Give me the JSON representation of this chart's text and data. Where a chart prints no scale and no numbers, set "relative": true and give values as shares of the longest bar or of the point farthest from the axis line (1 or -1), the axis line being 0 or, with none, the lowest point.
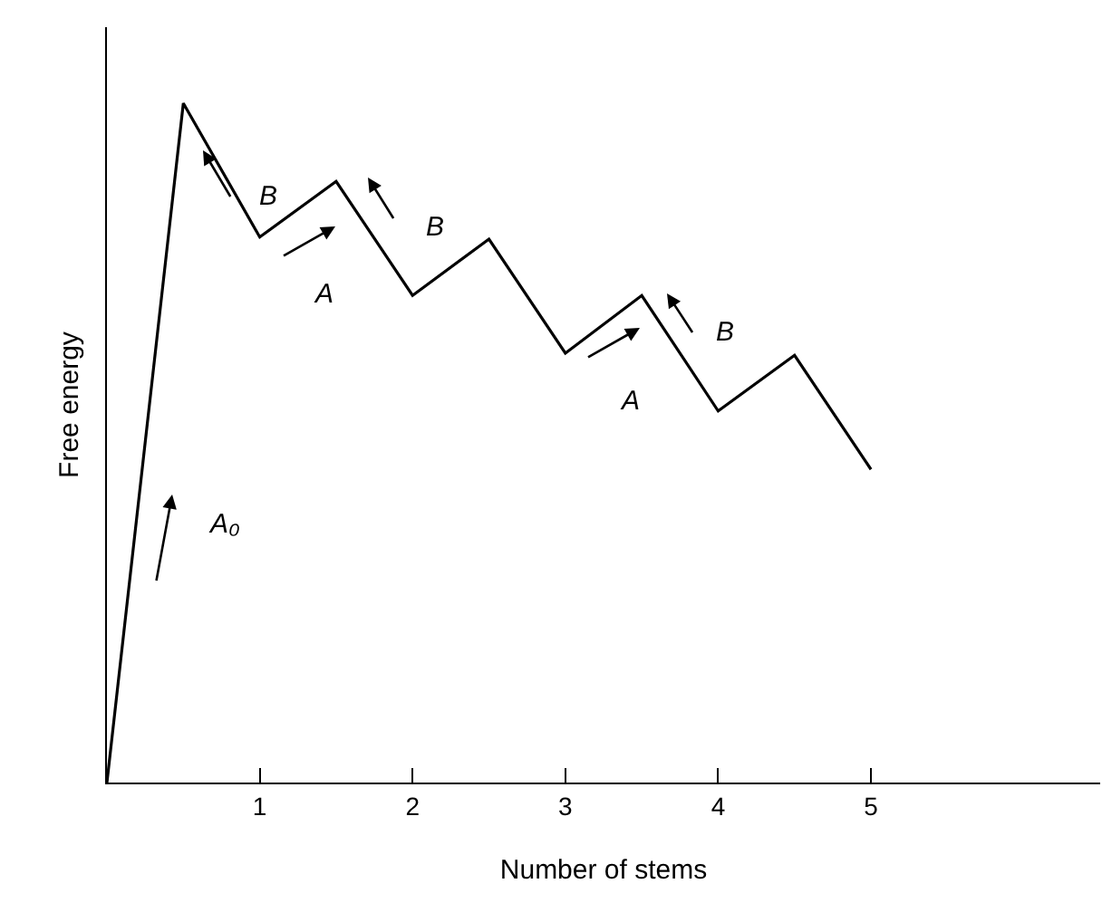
{
  "chart_data": {
    "type": "line",
    "relative": true,
    "xlabel": "Number of stems",
    "ylabel": "Free energy",
    "x": [
      0,
      0.5,
      1,
      1.5,
      2,
      2.5,
      3,
      3.5,
      4,
      4.5,
      5
    ],
    "series": [
      {
        "color": "#000000",
        "values": [
          0,
          1,
          0.803,
          0.885,
          0.717,
          0.8,
          0.632,
          0.717,
          0.547,
          0.629,
          0.461
        ]
      }
    ],
    "xlim": [
      0,
      6.5
    ],
    "xticks": [
      1,
      2,
      3,
      4,
      5
    ],
    "legend": false,
    "marker": "none",
    "line_style": "solid",
    "annotations": [
      "A₀",
      "B",
      "A",
      "B",
      "A",
      "B"
    ]
  }
}
